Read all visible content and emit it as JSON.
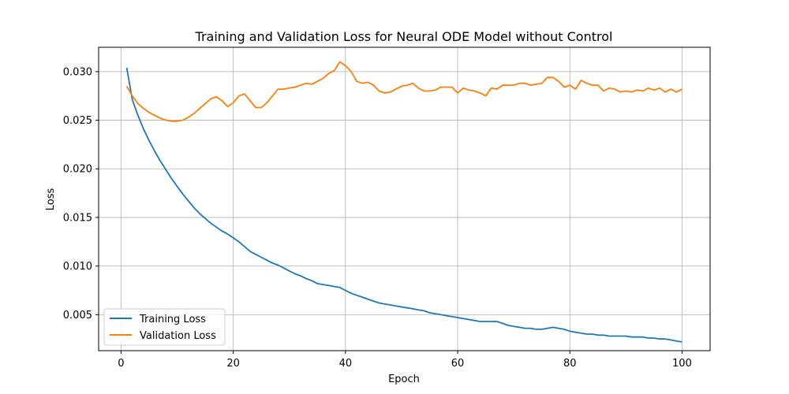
{
  "chart_data": {
    "type": "line",
    "title": "Training and Validation Loss for Neural ODE Model without Control",
    "xlabel": "Epoch",
    "ylabel": "Loss",
    "xlim": [
      -4,
      105
    ],
    "ylim": [
      0.0013,
      0.0325
    ],
    "xticks": [
      0,
      20,
      40,
      60,
      80,
      100
    ],
    "xtick_labels": [
      "0",
      "20",
      "40",
      "60",
      "80",
      "100"
    ],
    "yticks": [
      0.005,
      0.01,
      0.015,
      0.02,
      0.025,
      0.03
    ],
    "ytick_labels": [
      "0.005",
      "0.010",
      "0.015",
      "0.020",
      "0.025",
      "0.030"
    ],
    "grid": true,
    "legend_position": "lower-left",
    "series": [
      {
        "name": "Training Loss",
        "color": "#1f77b4",
        "x": [
          1,
          2,
          3,
          4,
          5,
          6,
          7,
          8,
          9,
          10,
          11,
          12,
          13,
          14,
          15,
          16,
          17,
          18,
          19,
          20,
          21,
          22,
          23,
          24,
          25,
          26,
          27,
          28,
          29,
          30,
          31,
          32,
          33,
          34,
          35,
          36,
          37,
          38,
          39,
          40,
          41,
          42,
          43,
          44,
          45,
          46,
          47,
          48,
          49,
          50,
          51,
          52,
          53,
          54,
          55,
          56,
          57,
          58,
          59,
          60,
          61,
          62,
          63,
          64,
          65,
          66,
          67,
          68,
          69,
          70,
          71,
          72,
          73,
          74,
          75,
          76,
          77,
          78,
          79,
          80,
          81,
          82,
          83,
          84,
          85,
          86,
          87,
          88,
          89,
          90,
          91,
          92,
          93,
          94,
          95,
          96,
          97,
          98,
          99,
          100
        ],
        "values": [
          0.0304,
          0.0271,
          0.0255,
          0.0241,
          0.0229,
          0.0218,
          0.0208,
          0.0199,
          0.019,
          0.0182,
          0.0174,
          0.0167,
          0.016,
          0.0154,
          0.0149,
          0.0144,
          0.014,
          0.0136,
          0.0133,
          0.0129,
          0.0125,
          0.012,
          0.0115,
          0.0112,
          0.0109,
          0.0106,
          0.0103,
          0.0101,
          0.0098,
          0.0095,
          0.0092,
          0.009,
          0.0087,
          0.0085,
          0.0082,
          0.0081,
          0.008,
          0.0079,
          0.0078,
          0.0075,
          0.0072,
          0.007,
          0.0068,
          0.0066,
          0.0064,
          0.0062,
          0.0061,
          0.006,
          0.0059,
          0.0058,
          0.0057,
          0.0056,
          0.0055,
          0.0054,
          0.0052,
          0.0051,
          0.005,
          0.0049,
          0.0048,
          0.0047,
          0.0046,
          0.0045,
          0.0044,
          0.0043,
          0.0043,
          0.0043,
          0.0043,
          0.0041,
          0.0039,
          0.0038,
          0.0037,
          0.0036,
          0.0036,
          0.0035,
          0.0035,
          0.0036,
          0.0037,
          0.0036,
          0.0035,
          0.0033,
          0.0032,
          0.0031,
          0.003,
          0.003,
          0.0029,
          0.0029,
          0.0028,
          0.0028,
          0.0028,
          0.0028,
          0.0027,
          0.0027,
          0.0027,
          0.0026,
          0.0026,
          0.0025,
          0.0025,
          0.0024,
          0.0023,
          0.0022
        ]
      },
      {
        "name": "Validation Loss",
        "color": "#ff7f0e",
        "x": [
          1,
          2,
          3,
          4,
          5,
          6,
          7,
          8,
          9,
          10,
          11,
          12,
          13,
          14,
          15,
          16,
          17,
          18,
          19,
          20,
          21,
          22,
          23,
          24,
          25,
          26,
          27,
          28,
          29,
          30,
          31,
          32,
          33,
          34,
          35,
          36,
          37,
          38,
          39,
          40,
          41,
          42,
          43,
          44,
          45,
          46,
          47,
          48,
          49,
          50,
          51,
          52,
          53,
          54,
          55,
          56,
          57,
          58,
          59,
          60,
          61,
          62,
          63,
          64,
          65,
          66,
          67,
          68,
          69,
          70,
          71,
          72,
          73,
          74,
          75,
          76,
          77,
          78,
          79,
          80,
          81,
          82,
          83,
          84,
          85,
          86,
          87,
          88,
          89,
          90,
          91,
          92,
          93,
          94,
          95,
          96,
          97,
          98,
          99,
          100
        ],
        "values": [
          0.0285,
          0.0275,
          0.0267,
          0.0262,
          0.0258,
          0.0255,
          0.0252,
          0.025,
          0.0249,
          0.0249,
          0.025,
          0.0253,
          0.0257,
          0.0262,
          0.0267,
          0.0272,
          0.0274,
          0.027,
          0.0264,
          0.0268,
          0.0275,
          0.0277,
          0.027,
          0.0263,
          0.0263,
          0.0268,
          0.0275,
          0.0282,
          0.0282,
          0.0283,
          0.0284,
          0.0286,
          0.0288,
          0.0287,
          0.029,
          0.0293,
          0.0298,
          0.0301,
          0.031,
          0.0306,
          0.03,
          0.029,
          0.0288,
          0.0289,
          0.0286,
          0.028,
          0.0278,
          0.0279,
          0.0282,
          0.0285,
          0.0286,
          0.0288,
          0.0283,
          0.028,
          0.028,
          0.0281,
          0.0284,
          0.0284,
          0.0284,
          0.0278,
          0.0283,
          0.0281,
          0.028,
          0.0278,
          0.0275,
          0.0283,
          0.0282,
          0.0286,
          0.0286,
          0.0286,
          0.0288,
          0.0288,
          0.0286,
          0.0287,
          0.0288,
          0.0294,
          0.0294,
          0.029,
          0.0284,
          0.0286,
          0.0282,
          0.0291,
          0.0288,
          0.0286,
          0.0286,
          0.028,
          0.0283,
          0.0282,
          0.0279,
          0.028,
          0.0279,
          0.0281,
          0.028,
          0.0283,
          0.0281,
          0.0283,
          0.0279,
          0.0282,
          0.0279,
          0.0282
        ]
      }
    ]
  }
}
